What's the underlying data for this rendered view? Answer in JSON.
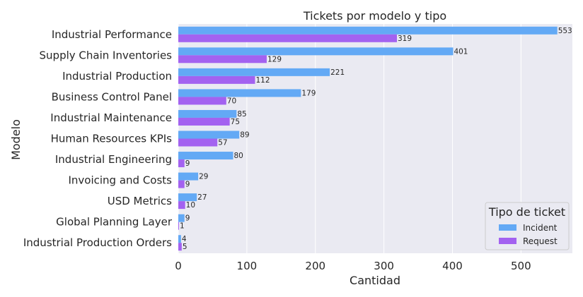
{
  "chart_data": {
    "type": "bar",
    "orientation": "horizontal",
    "title": "Tickets por modelo y tipo",
    "xlabel": "Cantidad",
    "ylabel": "Modelo",
    "xlim": [
      0,
      575
    ],
    "xticks": [
      0,
      100,
      200,
      300,
      400,
      500
    ],
    "grid": true,
    "legend_placement": "bottom-right",
    "legend_title": "Tipo de ticket",
    "categories": [
      "Industrial Performance",
      "Supply Chain Inventories",
      "Industrial Production",
      "Business Control Panel",
      "Industrial Maintenance",
      "Human Resources KPIs",
      "Industrial Engineering",
      "Invoicing and Costs",
      "USD Metrics",
      "Global Planning Layer",
      "Industrial Production Orders"
    ],
    "series": [
      {
        "name": "Incident",
        "color": "#63a9f5",
        "values": [
          553,
          401,
          221,
          179,
          85,
          89,
          80,
          29,
          27,
          9,
          4
        ]
      },
      {
        "name": "Request",
        "color": "#a362f0",
        "values": [
          319,
          129,
          112,
          70,
          75,
          57,
          9,
          9,
          10,
          1,
          5
        ]
      }
    ]
  }
}
